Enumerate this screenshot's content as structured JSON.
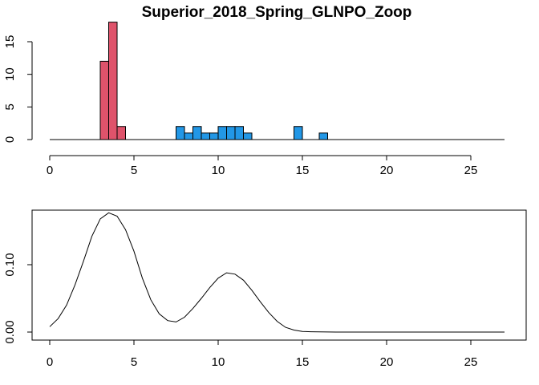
{
  "chart_data": [
    {
      "type": "bar",
      "title": "Superior_2018_Spring_GLNPO_Zoop",
      "xlabel": "",
      "ylabel": "",
      "xlim": [
        0,
        27
      ],
      "ylim": [
        0,
        18
      ],
      "x_ticks": [
        0,
        5,
        10,
        15,
        20,
        25
      ],
      "y_ticks": [
        0,
        5,
        10,
        15
      ],
      "bin_width": 0.5,
      "colors": {
        "red": "#DF536B",
        "blue": "#2297E6",
        "outline": "#000000"
      },
      "bins": [
        {
          "x0": 3.0,
          "x1": 3.5,
          "count": 12,
          "color": "red"
        },
        {
          "x0": 3.5,
          "x1": 4.0,
          "count": 18,
          "color": "red"
        },
        {
          "x0": 4.0,
          "x1": 4.5,
          "count": 2,
          "color": "red"
        },
        {
          "x0": 7.5,
          "x1": 8.0,
          "count": 2,
          "color": "blue"
        },
        {
          "x0": 8.0,
          "x1": 8.5,
          "count": 1,
          "color": "blue"
        },
        {
          "x0": 8.5,
          "x1": 9.0,
          "count": 2,
          "color": "blue"
        },
        {
          "x0": 9.0,
          "x1": 9.5,
          "count": 1,
          "color": "blue"
        },
        {
          "x0": 9.5,
          "x1": 10.0,
          "count": 1,
          "color": "blue"
        },
        {
          "x0": 10.0,
          "x1": 10.5,
          "count": 2,
          "color": "blue"
        },
        {
          "x0": 10.5,
          "x1": 11.0,
          "count": 2,
          "color": "blue"
        },
        {
          "x0": 11.0,
          "x1": 11.5,
          "count": 2,
          "color": "blue"
        },
        {
          "x0": 11.5,
          "x1": 12.0,
          "count": 1,
          "color": "blue"
        },
        {
          "x0": 14.5,
          "x1": 15.0,
          "count": 2,
          "color": "blue"
        },
        {
          "x0": 16.0,
          "x1": 16.5,
          "count": 1,
          "color": "blue"
        }
      ],
      "baseline_range": [
        0,
        27
      ]
    },
    {
      "type": "line",
      "title": "",
      "xlabel": "",
      "ylabel": "",
      "xlim": [
        0,
        27
      ],
      "ylim": [
        0,
        0.175
      ],
      "x_ticks": [
        0,
        5,
        10,
        15,
        20,
        25
      ],
      "y_ticks": [
        0.0,
        0.1
      ],
      "y_tick_labels": [
        "0.00",
        "0.10"
      ],
      "boxed": true,
      "x": [
        0,
        0.5,
        1,
        1.5,
        2,
        2.5,
        3,
        3.5,
        4,
        4.5,
        5,
        5.5,
        6,
        6.5,
        7,
        7.5,
        8,
        8.5,
        9,
        9.5,
        10,
        10.5,
        11,
        11.5,
        12,
        12.5,
        13,
        13.5,
        14,
        14.5,
        15,
        15.5,
        16,
        17,
        18,
        19,
        20,
        21,
        22,
        23,
        24,
        25,
        26,
        27
      ],
      "y": [
        0.008,
        0.02,
        0.04,
        0.07,
        0.105,
        0.142,
        0.168,
        0.177,
        0.172,
        0.152,
        0.12,
        0.08,
        0.048,
        0.027,
        0.017,
        0.015,
        0.022,
        0.035,
        0.05,
        0.066,
        0.08,
        0.088,
        0.086,
        0.077,
        0.062,
        0.045,
        0.029,
        0.016,
        0.007,
        0.003,
        0.001,
        0.0005,
        0.0002,
        0,
        0,
        0,
        0,
        0,
        0,
        0,
        0,
        0,
        0,
        0
      ]
    }
  ]
}
